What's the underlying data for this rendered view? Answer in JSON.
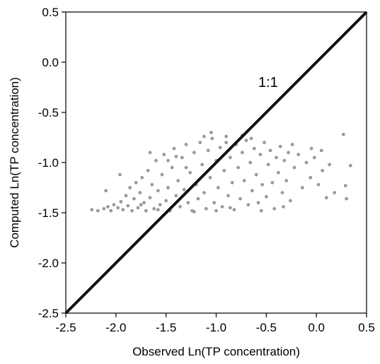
{
  "chart_data": {
    "type": "scatter",
    "xlabel": "Observed Ln(TP concentration)",
    "ylabel": "Computed Ln(TP concentration)",
    "xlim": [
      -2.5,
      0.5
    ],
    "ylim": [
      -2.5,
      0.5
    ],
    "x_ticks": [
      "-2.5",
      "-2.0",
      "-1.5",
      "-1.0",
      "-0.5",
      "0.0",
      "0.5"
    ],
    "y_ticks": [
      "-2.5",
      "-2.0",
      "-1.5",
      "-1.0",
      "-0.5",
      "0.0",
      "0.5"
    ],
    "x_tick_values": [
      -2.5,
      -2.0,
      -1.5,
      -1.0,
      -0.5,
      0.0,
      0.5
    ],
    "y_tick_values": [
      -2.5,
      -2.0,
      -1.5,
      -1.0,
      -0.5,
      0.0,
      0.5
    ],
    "grid": false,
    "reference_line": {
      "label": "1:1",
      "from": [
        -2.5,
        -2.5
      ],
      "to": [
        0.5,
        0.5
      ]
    },
    "point_color": "#9a9a9a",
    "line_color": "#111111",
    "points": [
      [
        -2.24,
        -1.47
      ],
      [
        -2.18,
        -1.48
      ],
      [
        -2.12,
        -1.46
      ],
      [
        -2.08,
        -1.44
      ],
      [
        -2.05,
        -1.48
      ],
      [
        -2.02,
        -1.42
      ],
      [
        -1.98,
        -1.45
      ],
      [
        -1.95,
        -1.39
      ],
      [
        -1.93,
        -1.47
      ],
      [
        -1.9,
        -1.33
      ],
      [
        -1.88,
        -1.43
      ],
      [
        -1.86,
        -1.25
      ],
      [
        -1.84,
        -1.48
      ],
      [
        -1.82,
        -1.36
      ],
      [
        -1.8,
        -1.2
      ],
      [
        -1.78,
        -1.45
      ],
      [
        -1.76,
        -1.3
      ],
      [
        -1.74,
        -1.15
      ],
      [
        -1.72,
        -1.4
      ],
      [
        -1.7,
        -1.48
      ],
      [
        -1.68,
        -1.08
      ],
      [
        -1.66,
        -1.35
      ],
      [
        -1.64,
        -1.22
      ],
      [
        -1.62,
        -1.46
      ],
      [
        -1.6,
        -0.98
      ],
      [
        -1.58,
        -1.28
      ],
      [
        -1.56,
        -1.42
      ],
      [
        -1.54,
        -1.12
      ],
      [
        -1.52,
        -0.92
      ],
      [
        -1.5,
        -1.38
      ],
      [
        -1.48,
        -1.25
      ],
      [
        -1.46,
        -1.48
      ],
      [
        -1.44,
        -1.05
      ],
      [
        -1.42,
        -0.86
      ],
      [
        -1.4,
        -1.33
      ],
      [
        -1.38,
        -1.18
      ],
      [
        -1.36,
        -1.44
      ],
      [
        -1.34,
        -0.95
      ],
      [
        -1.32,
        -1.27
      ],
      [
        -1.3,
        -0.82
      ],
      [
        -1.28,
        -1.4
      ],
      [
        -1.26,
        -1.1
      ],
      [
        -1.24,
        -1.48
      ],
      [
        -1.22,
        -0.9
      ],
      [
        -1.2,
        -1.22
      ],
      [
        -1.18,
        -1.36
      ],
      [
        -1.16,
        -0.8
      ],
      [
        -1.14,
        -1.02
      ],
      [
        -1.12,
        -1.3
      ],
      [
        -1.1,
        -1.46
      ],
      [
        -1.08,
        -0.88
      ],
      [
        -1.06,
        -1.15
      ],
      [
        -1.04,
        -0.76
      ],
      [
        -1.02,
        -1.4
      ],
      [
        -1.0,
        -0.98
      ],
      [
        -0.98,
        -1.25
      ],
      [
        -0.96,
        -0.85
      ],
      [
        -0.94,
        -1.44
      ],
      [
        -0.92,
        -1.08
      ],
      [
        -0.9,
        -0.74
      ],
      [
        -0.88,
        -1.33
      ],
      [
        -0.86,
        -0.95
      ],
      [
        -0.84,
        -1.2
      ],
      [
        -0.82,
        -1.47
      ],
      [
        -0.8,
        -0.82
      ],
      [
        -0.78,
        -1.05
      ],
      [
        -0.76,
        -1.36
      ],
      [
        -0.74,
        -0.9
      ],
      [
        -0.72,
        -1.18
      ],
      [
        -0.7,
        -0.78
      ],
      [
        -0.68,
        -1.42
      ],
      [
        -0.66,
        -1.0
      ],
      [
        -0.64,
        -1.28
      ],
      [
        -0.62,
        -0.86
      ],
      [
        -0.6,
        -1.12
      ],
      [
        -0.58,
        -1.4
      ],
      [
        -0.56,
        -0.92
      ],
      [
        -0.54,
        -1.22
      ],
      [
        -0.52,
        -0.8
      ],
      [
        -0.5,
        -1.34
      ],
      [
        -0.48,
        -1.02
      ],
      [
        -0.46,
        -0.88
      ],
      [
        -0.44,
        -1.2
      ],
      [
        -0.42,
        -1.46
      ],
      [
        -0.4,
        -0.95
      ],
      [
        -0.38,
        -1.1
      ],
      [
        -0.36,
        -0.84
      ],
      [
        -0.34,
        -1.3
      ],
      [
        -0.32,
        -0.98
      ],
      [
        -0.3,
        -1.18
      ],
      [
        -0.28,
        -0.9
      ],
      [
        -0.26,
        -1.38
      ],
      [
        -0.22,
        -1.05
      ],
      [
        -0.18,
        -0.92
      ],
      [
        -0.14,
        -1.25
      ],
      [
        -0.1,
        -1.0
      ],
      [
        -0.06,
        -1.15
      ],
      [
        -0.02,
        -0.95
      ],
      [
        0.02,
        -1.22
      ],
      [
        0.06,
        -1.08
      ],
      [
        0.1,
        -1.35
      ],
      [
        0.13,
        -1.02
      ],
      [
        0.18,
        -1.3
      ],
      [
        0.27,
        -0.72
      ],
      [
        0.29,
        -1.23
      ],
      [
        0.3,
        -1.36
      ],
      [
        0.34,
        -1.03
      ],
      [
        -1.96,
        -1.12
      ],
      [
        -2.1,
        -1.28
      ],
      [
        -1.66,
        -0.9
      ],
      [
        -1.4,
        -0.94
      ],
      [
        -0.74,
        -0.73
      ],
      [
        -1.58,
        -1.47
      ],
      [
        -1.22,
        -1.49
      ],
      [
        -0.86,
        -1.45
      ],
      [
        -1.05,
        -0.7
      ],
      [
        -0.65,
        -0.76
      ],
      [
        -1.75,
        -1.42
      ],
      [
        -0.24,
        -0.82
      ],
      [
        -0.05,
        -0.86
      ],
      [
        -0.33,
        -1.44
      ],
      [
        0.05,
        -0.88
      ],
      [
        -1.12,
        -0.74
      ],
      [
        -0.55,
        -1.48
      ],
      [
        -1.48,
        -0.98
      ],
      [
        -1.0,
        -1.48
      ],
      [
        -0.9,
        -0.8
      ],
      [
        -1.3,
        -1.05
      ]
    ]
  }
}
